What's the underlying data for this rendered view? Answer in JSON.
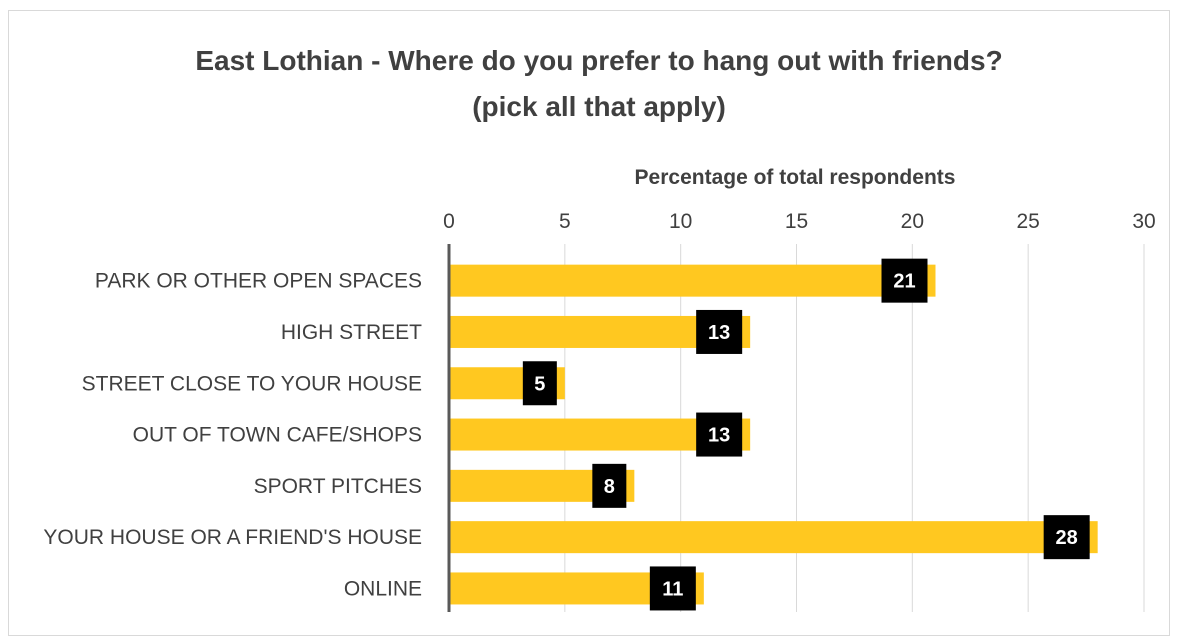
{
  "chart_data": {
    "type": "bar",
    "orientation": "horizontal",
    "title": "East Lothian - Where do you prefer to hang out with friends? (pick all that apply)",
    "title_lines": [
      "East Lothian - Where do you prefer to hang out with friends?",
      "(pick all that apply)"
    ],
    "xlabel": "Percentage of total respondents",
    "ylabel": "",
    "xlim": [
      0,
      30
    ],
    "x_ticks": [
      0,
      5,
      10,
      15,
      20,
      25,
      30
    ],
    "categories": [
      "PARK OR OTHER OPEN SPACES",
      "HIGH STREET",
      "STREET CLOSE TO YOUR HOUSE",
      "OUT OF TOWN CAFE/SHOPS",
      "SPORT PITCHES",
      "YOUR HOUSE OR A FRIEND'S HOUSE",
      "ONLINE"
    ],
    "values": [
      21,
      13,
      5,
      13,
      8,
      28,
      11
    ],
    "grid": true,
    "x_axis_position": "top",
    "bar_color": "#FFC820",
    "label_bg_color": "#000000",
    "label_text_color": "#FFFFFF"
  }
}
